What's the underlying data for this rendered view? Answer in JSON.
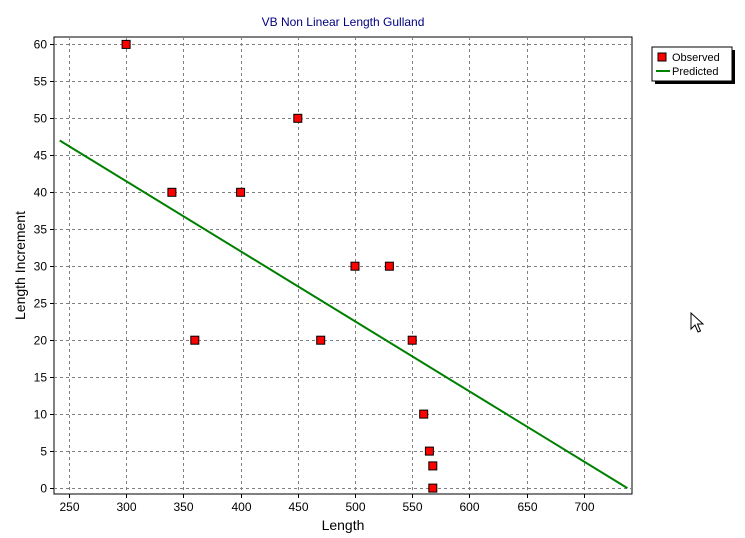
{
  "chart_data": {
    "type": "scatter",
    "title": "VB Non Linear Length Gulland",
    "xlabel": "Length",
    "ylabel": "Length Increment",
    "xlim": [
      237,
      742
    ],
    "ylim": [
      -0.8,
      61
    ],
    "xticks": [
      250,
      300,
      350,
      400,
      450,
      500,
      550,
      600,
      650,
      700
    ],
    "yticks": [
      0,
      5,
      10,
      15,
      20,
      25,
      30,
      35,
      40,
      45,
      50,
      55,
      60
    ],
    "grid": true,
    "legend_position": "top-right",
    "series": [
      {
        "name": "Observed",
        "kind": "scatter",
        "color": "#ff0000",
        "points": [
          {
            "x": 300,
            "y": 60
          },
          {
            "x": 340,
            "y": 40
          },
          {
            "x": 360,
            "y": 20
          },
          {
            "x": 400,
            "y": 40
          },
          {
            "x": 450,
            "y": 50
          },
          {
            "x": 470,
            "y": 20
          },
          {
            "x": 500,
            "y": 30
          },
          {
            "x": 530,
            "y": 30
          },
          {
            "x": 550,
            "y": 20
          },
          {
            "x": 560,
            "y": 10
          },
          {
            "x": 565,
            "y": 5
          },
          {
            "x": 568,
            "y": 3
          },
          {
            "x": 568,
            "y": 0
          }
        ]
      },
      {
        "name": "Predicted",
        "kind": "line",
        "color": "#008000",
        "points": [
          {
            "x": 242,
            "y": 47
          },
          {
            "x": 738,
            "y": 0
          }
        ]
      }
    ]
  },
  "colors": {
    "title": "#000080",
    "gridline": "#808080"
  },
  "icons": {
    "cursor": "mouse-pointer-icon"
  }
}
